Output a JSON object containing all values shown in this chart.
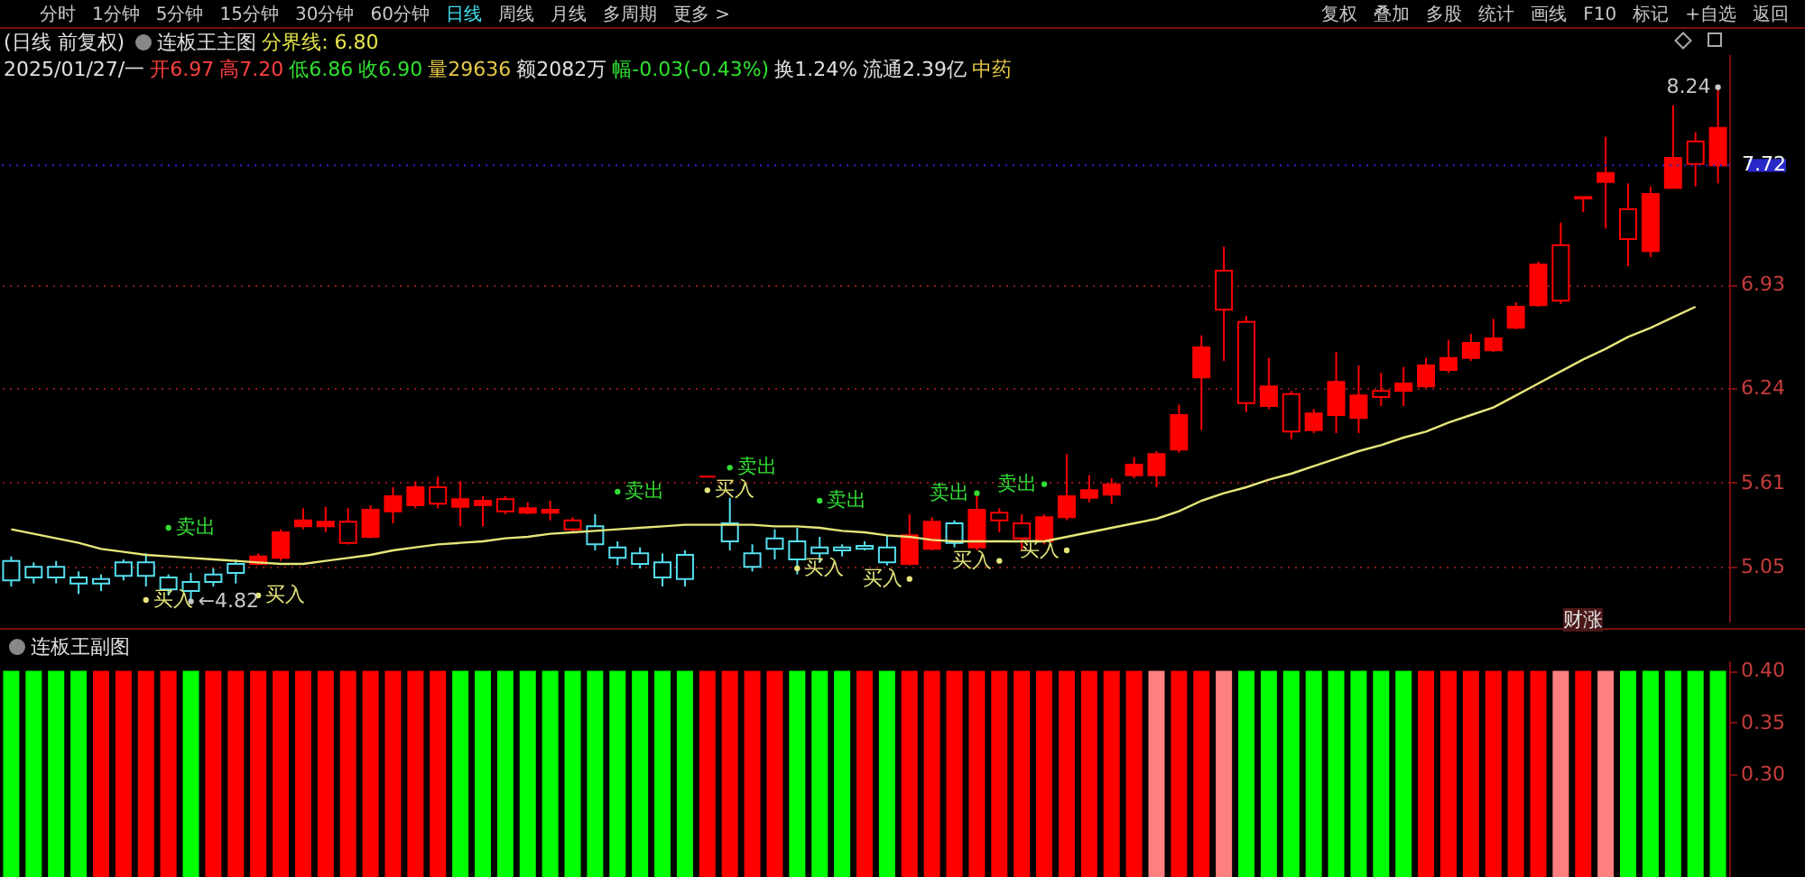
{
  "chart_data": [
    {
      "type": "candlestick",
      "title": "连板王主图",
      "subtitle": "分界线: 6.80",
      "categories": [
        null,
        null,
        null,
        null,
        null,
        null,
        null,
        null,
        null,
        null,
        null,
        null,
        null,
        null,
        null,
        null,
        null,
        null,
        null,
        null,
        null,
        null,
        null,
        null,
        null,
        null,
        null,
        null,
        null,
        null,
        null,
        null,
        null,
        null,
        null,
        null,
        null,
        null,
        null,
        null,
        null,
        null,
        null,
        null,
        null,
        null,
        null,
        null,
        null,
        null,
        null,
        null,
        null,
        null,
        null,
        null,
        null,
        null,
        null,
        null,
        null,
        null,
        null,
        null,
        null,
        null,
        null,
        null,
        null,
        null,
        null,
        null,
        null,
        null,
        null,
        null,
        null
      ],
      "ohlc": [
        [
          4.96,
          5.12,
          4.92,
          5.09
        ],
        [
          4.98,
          5.08,
          4.94,
          5.05
        ],
        [
          4.98,
          5.09,
          4.94,
          5.05
        ],
        [
          4.94,
          5.02,
          4.87,
          4.98
        ],
        [
          4.94,
          5.0,
          4.89,
          4.97
        ],
        [
          4.99,
          5.1,
          4.96,
          5.08
        ],
        [
          4.99,
          5.14,
          4.92,
          5.08
        ],
        [
          4.9,
          5.0,
          4.86,
          4.98
        ],
        [
          4.89,
          5.01,
          4.82,
          4.95
        ],
        [
          4.95,
          5.04,
          4.92,
          5.0
        ],
        [
          5.01,
          5.1,
          4.94,
          5.07
        ],
        [
          5.12,
          5.14,
          5.06,
          5.07
        ],
        [
          5.28,
          5.3,
          5.09,
          5.11
        ],
        [
          5.36,
          5.44,
          5.3,
          5.32
        ],
        [
          5.35,
          5.45,
          5.28,
          5.32
        ],
        [
          5.21,
          5.44,
          5.2,
          5.35
        ],
        [
          5.43,
          5.46,
          5.24,
          5.25
        ],
        [
          5.52,
          5.58,
          5.34,
          5.42
        ],
        [
          5.58,
          5.62,
          5.44,
          5.46
        ],
        [
          5.47,
          5.65,
          5.44,
          5.58
        ],
        [
          5.5,
          5.62,
          5.32,
          5.45
        ],
        [
          5.49,
          5.52,
          5.32,
          5.46
        ],
        [
          5.42,
          5.52,
          5.4,
          5.5
        ],
        [
          5.44,
          5.48,
          5.4,
          5.41
        ],
        [
          5.43,
          5.49,
          5.36,
          5.41
        ],
        [
          5.3,
          5.38,
          5.28,
          5.36
        ],
        [
          5.2,
          5.4,
          5.16,
          5.32
        ],
        [
          5.11,
          5.22,
          5.06,
          5.18
        ],
        [
          5.07,
          5.18,
          5.04,
          5.14
        ],
        [
          4.98,
          5.14,
          4.92,
          5.08
        ],
        [
          4.97,
          5.16,
          4.92,
          5.13
        ],
        [
          5.65,
          5.65,
          5.65,
          5.65
        ],
        [
          5.22,
          5.51,
          5.16,
          5.34
        ],
        [
          5.05,
          5.2,
          5.02,
          5.14
        ],
        [
          5.17,
          5.3,
          5.1,
          5.24
        ],
        [
          5.1,
          5.31,
          5.0,
          5.22
        ],
        [
          5.14,
          5.25,
          5.08,
          5.18
        ],
        [
          5.16,
          5.2,
          5.12,
          5.18
        ],
        [
          5.17,
          5.22,
          5.16,
          5.19
        ],
        [
          5.08,
          5.26,
          5.06,
          5.18
        ],
        [
          5.26,
          5.4,
          5.06,
          5.07
        ],
        [
          5.35,
          5.38,
          5.16,
          5.17
        ],
        [
          5.21,
          5.36,
          5.18,
          5.34
        ],
        [
          5.43,
          5.54,
          5.16,
          5.18
        ],
        [
          5.36,
          5.44,
          5.28,
          5.41
        ],
        [
          5.24,
          5.4,
          5.16,
          5.34
        ],
        [
          5.38,
          5.4,
          5.2,
          5.22
        ],
        [
          5.52,
          5.8,
          5.36,
          5.38
        ],
        [
          5.56,
          5.66,
          5.48,
          5.51
        ],
        [
          5.6,
          5.64,
          5.47,
          5.53
        ],
        [
          5.73,
          5.78,
          5.64,
          5.66
        ],
        [
          5.8,
          5.82,
          5.58,
          5.66
        ],
        [
          6.06,
          6.13,
          5.81,
          5.83
        ],
        [
          6.51,
          6.59,
          5.96,
          6.31
        ],
        [
          6.76,
          7.18,
          6.42,
          7.02
        ],
        [
          6.14,
          6.72,
          6.08,
          6.68
        ],
        [
          6.25,
          6.44,
          6.1,
          6.12
        ],
        [
          5.95,
          6.22,
          5.9,
          6.2
        ],
        [
          6.07,
          6.1,
          5.94,
          5.96
        ],
        [
          6.28,
          6.48,
          5.94,
          6.06
        ],
        [
          6.19,
          6.39,
          5.94,
          6.04
        ],
        [
          6.18,
          6.34,
          6.12,
          6.22
        ],
        [
          6.27,
          6.38,
          6.12,
          6.22
        ],
        [
          6.39,
          6.44,
          6.24,
          6.25
        ],
        [
          6.44,
          6.56,
          6.34,
          6.36
        ],
        [
          6.54,
          6.6,
          6.42,
          6.44
        ],
        [
          6.57,
          6.7,
          6.48,
          6.49
        ],
        [
          6.78,
          6.81,
          6.63,
          6.64
        ],
        [
          7.06,
          7.08,
          6.78,
          6.79
        ],
        [
          6.82,
          7.34,
          6.8,
          7.19
        ],
        [
          7.5,
          7.51,
          7.41,
          7.51
        ],
        [
          7.67,
          7.91,
          7.3,
          7.61
        ],
        [
          7.23,
          7.6,
          7.05,
          7.43
        ],
        [
          7.53,
          7.58,
          7.11,
          7.15
        ],
        [
          7.77,
          8.12,
          7.57,
          7.57
        ],
        [
          7.73,
          7.94,
          7.58,
          7.88
        ],
        [
          7.97,
          8.24,
          7.6,
          7.72
        ]
      ],
      "colors": [
        "#54e0f0",
        "#54e0f0",
        "#54e0f0",
        "#54e0f0",
        "#54e0f0",
        "#54e0f0",
        "#54e0f0",
        "#54e0f0",
        "#54e0f0",
        "#54e0f0",
        "#54e0f0",
        "#ff0000",
        "#ff0000",
        "#ff0000",
        "#ff0000",
        "#ff0000",
        "#ff0000",
        "#ff0000",
        "#ff0000",
        "#ff0000",
        "#ff0000",
        "#ff0000",
        "#ff0000",
        "#ff0000",
        "#ff0000",
        "#ff0000",
        "#54e0f0",
        "#54e0f0",
        "#54e0f0",
        "#54e0f0",
        "#54e0f0",
        "#ff0000",
        "#54e0f0",
        "#54e0f0",
        "#54e0f0",
        "#54e0f0",
        "#54e0f0",
        "#54e0f0",
        "#54e0f0",
        "#54e0f0",
        "#ff0000",
        "#ff0000",
        "#54e0f0",
        "#ff0000",
        "#ff0000",
        "#ff0000",
        "#ff0000",
        "#ff0000",
        "#ff0000",
        "#ff0000",
        "#ff0000",
        "#ff0000",
        "#ff0000",
        "#ff0000",
        "#ff0000",
        "#ff0000",
        "#ff0000",
        "#ff0000",
        "#ff0000",
        "#ff0000",
        "#ff0000",
        "#ff0000",
        "#ff0000",
        "#ff0000",
        "#ff0000",
        "#ff0000",
        "#ff0000",
        "#ff0000",
        "#ff0000",
        "#ff0000",
        "#ff0000",
        "#ff0000",
        "#ff0000",
        "#ff0000",
        "#ff0000",
        "#ff0000",
        "#ff0000"
      ],
      "series": [
        {
          "type": "line",
          "color": "#e6e67a",
          "values": [
            5.3,
            5.27,
            5.24,
            5.21,
            5.17,
            5.15,
            5.13,
            5.12,
            5.11,
            5.1,
            5.09,
            5.08,
            5.07,
            5.07,
            5.09,
            5.11,
            5.13,
            5.16,
            5.18,
            5.2,
            5.21,
            5.22,
            5.24,
            5.25,
            5.27,
            5.28,
            5.29,
            5.3,
            5.31,
            5.32,
            5.33,
            5.33,
            5.33,
            5.33,
            5.32,
            5.32,
            5.31,
            5.29,
            5.28,
            5.26,
            5.25,
            5.23,
            5.22,
            5.22,
            5.22,
            5.22,
            5.22,
            5.25,
            5.28,
            5.31,
            5.34,
            5.37,
            5.42,
            5.49,
            5.54,
            5.58,
            5.63,
            5.67,
            5.72,
            5.77,
            5.82,
            5.86,
            5.91,
            5.95,
            6.01,
            6.06,
            6.11,
            6.19,
            6.27,
            6.35,
            6.43,
            6.5,
            6.58,
            6.64,
            6.71,
            6.78,
            null
          ]
        },
        {
          "type": "scatter",
          "marker": "circle",
          "color": "#33dd33",
          "values": [
            null,
            null,
            null,
            null,
            null,
            null,
            null,
            5.31,
            null,
            null,
            null,
            null,
            null,
            null,
            null,
            null,
            null,
            null,
            null,
            null,
            null,
            null,
            null,
            null,
            null,
            null,
            null,
            5.55,
            null,
            null,
            null,
            null,
            5.71,
            null,
            null,
            null,
            5.49,
            null,
            null,
            null,
            null,
            null,
            null,
            5.54,
            null,
            null,
            5.6,
            null,
            null,
            null,
            null,
            null,
            null,
            null,
            null,
            null,
            null,
            null,
            null,
            null,
            null,
            null,
            null,
            null,
            null,
            null,
            null,
            null,
            null,
            null,
            null,
            null,
            null,
            null,
            null,
            null,
            null
          ],
          "value_labels": [
            null,
            null,
            null,
            null,
            null,
            null,
            null,
            "卖出",
            null,
            null,
            null,
            null,
            null,
            null,
            null,
            null,
            null,
            null,
            null,
            null,
            null,
            null,
            null,
            null,
            null,
            null,
            null,
            "卖出",
            null,
            null,
            null,
            null,
            "卖出",
            null,
            null,
            null,
            "卖出",
            null,
            null,
            null,
            null,
            null,
            null,
            "卖出",
            null,
            null,
            "卖出",
            null,
            null,
            null,
            null,
            null,
            null,
            null,
            null,
            null,
            null,
            null,
            null,
            null,
            null,
            null,
            null,
            null,
            null,
            null,
            null,
            null,
            null,
            null,
            null,
            null,
            null,
            null,
            null,
            null,
            null
          ]
        },
        {
          "type": "scatter",
          "marker": "circle",
          "color": "#e6e67a",
          "values": [
            null,
            null,
            null,
            null,
            null,
            null,
            4.83,
            null,
            null,
            null,
            null,
            4.86,
            null,
            null,
            null,
            null,
            null,
            null,
            null,
            null,
            null,
            null,
            null,
            null,
            null,
            null,
            null,
            null,
            null,
            null,
            null,
            5.56,
            null,
            null,
            null,
            5.04,
            null,
            null,
            null,
            null,
            4.97,
            null,
            null,
            null,
            5.09,
            null,
            null,
            5.16,
            null,
            null,
            null,
            null,
            null,
            null,
            null,
            null,
            null,
            null,
            null,
            null,
            null,
            null,
            null,
            null,
            null,
            null,
            null,
            null,
            null,
            null,
            null,
            null,
            null,
            null,
            null,
            null,
            null
          ],
          "value_labels": [
            null,
            null,
            null,
            null,
            null,
            null,
            "买入",
            null,
            null,
            null,
            null,
            "买入",
            null,
            null,
            null,
            null,
            null,
            null,
            null,
            null,
            null,
            null,
            null,
            null,
            null,
            null,
            null,
            null,
            null,
            null,
            null,
            "买入",
            null,
            null,
            null,
            "买入",
            null,
            null,
            null,
            null,
            "买入",
            null,
            null,
            null,
            "买入",
            null,
            null,
            "买入",
            null,
            null,
            null,
            null,
            null,
            null,
            null,
            null,
            null,
            null,
            null,
            null,
            null,
            null,
            null,
            null,
            null,
            null,
            null,
            null,
            null,
            null,
            null,
            null,
            null,
            null,
            null,
            null,
            null
          ]
        },
        {
          "type": "scatter",
          "marker": "circle",
          "color": "#c8c8c8",
          "values": [
            null,
            null,
            null,
            null,
            null,
            null,
            null,
            null,
            4.82,
            null,
            null,
            null,
            null,
            null,
            null,
            null,
            null,
            null,
            null,
            null,
            null,
            null,
            null,
            null,
            null,
            null,
            null,
            null,
            null,
            null,
            null,
            null,
            null,
            null,
            null,
            null,
            null,
            null,
            null,
            null,
            null,
            null,
            null,
            null,
            null,
            null,
            null,
            null,
            null,
            null,
            null,
            null,
            null,
            null,
            null,
            null,
            null,
            null,
            null,
            null,
            null,
            null,
            null,
            null,
            null,
            null,
            null,
            null,
            null,
            null,
            null,
            null,
            null,
            null,
            null,
            null,
            8.24
          ],
          "value_labels": [
            null,
            null,
            null,
            null,
            null,
            null,
            null,
            null,
            "←4.82",
            null,
            null,
            null,
            null,
            null,
            null,
            null,
            null,
            null,
            null,
            null,
            null,
            null,
            null,
            null,
            null,
            null,
            null,
            null,
            null,
            null,
            null,
            null,
            null,
            null,
            null,
            null,
            null,
            null,
            null,
            null,
            null,
            null,
            null,
            null,
            null,
            null,
            null,
            null,
            null,
            null,
            null,
            null,
            null,
            null,
            null,
            null,
            null,
            null,
            null,
            null,
            null,
            null,
            null,
            null,
            null,
            null,
            null,
            null,
            null,
            null,
            null,
            null,
            null,
            null,
            null,
            null,
            "8.24"
          ]
        }
      ],
      "ylim": [
        4.68,
        8.46
      ],
      "yticks": [
        5.05,
        5.61,
        6.24,
        6.93
      ],
      "grid": "y",
      "tick_labels": "y",
      "ref_lines": [
        {
          "axis": "y",
          "value": 7.72,
          "label": "7.72",
          "color": "#2828c8"
        }
      ],
      "annotations": [
        "分时",
        "1分钟",
        "5分钟",
        "15分钟",
        "30分钟",
        "60分钟",
        "日线",
        "周线",
        "月线",
        "多周期",
        "更多 >",
        "复权",
        "叠加",
        "多股",
        "统计",
        "画线",
        "F10",
        "标记",
        "+自选",
        "返回",
        "(日线 前复权)",
        "2025/01/27/一",
        "开6.97",
        "高7.20",
        "低6.86",
        "收6.90",
        "量29636",
        "额2082万",
        "幅-0.03(-0.43%)",
        "换1.24%",
        "流通2.39亿",
        "中药",
        "财涨"
      ]
    },
    {
      "type": "bar",
      "title": "连板王副图",
      "categories": [
        null,
        null,
        null,
        null,
        null,
        null,
        null,
        null,
        null,
        null,
        null,
        null,
        null,
        null,
        null,
        null,
        null,
        null,
        null,
        null,
        null,
        null,
        null,
        null,
        null,
        null,
        null,
        null,
        null,
        null,
        null,
        null,
        null,
        null,
        null,
        null,
        null,
        null,
        null,
        null,
        null,
        null,
        null,
        null,
        null,
        null,
        null,
        null,
        null,
        null,
        null,
        null,
        null,
        null,
        null,
        null,
        null,
        null,
        null,
        null,
        null,
        null,
        null,
        null,
        null,
        null,
        null,
        null,
        null,
        null,
        null,
        null,
        null,
        null,
        null,
        null,
        null
      ],
      "values": [
        0.4,
        0.4,
        0.4,
        0.4,
        0.4,
        0.4,
        0.4,
        0.4,
        0.4,
        0.4,
        0.4,
        0.4,
        0.4,
        0.4,
        0.4,
        0.4,
        0.4,
        0.4,
        0.4,
        0.4,
        0.4,
        0.4,
        0.4,
        0.4,
        0.4,
        0.4,
        0.4,
        0.4,
        0.4,
        0.4,
        0.4,
        0.4,
        0.4,
        0.4,
        0.4,
        0.4,
        0.4,
        0.4,
        0.4,
        0.4,
        0.4,
        0.4,
        0.4,
        0.4,
        0.4,
        0.4,
        0.4,
        0.4,
        0.4,
        0.4,
        0.4,
        0.4,
        0.4,
        0.4,
        0.4,
        0.4,
        0.4,
        0.4,
        0.4,
        0.4,
        0.4,
        0.4,
        0.4,
        0.4,
        0.4,
        0.4,
        0.4,
        0.4,
        0.4,
        0.4,
        0.4,
        0.4,
        0.4,
        0.4,
        0.4,
        0.4,
        0.4
      ],
      "colors": [
        "#00ff00",
        "#00ff00",
        "#00ff00",
        "#00ff00",
        "#ff0000",
        "#ff0000",
        "#ff0000",
        "#ff0000",
        "#00ff00",
        "#ff0000",
        "#ff0000",
        "#ff0000",
        "#ff0000",
        "#ff0000",
        "#ff0000",
        "#ff0000",
        "#ff0000",
        "#ff0000",
        "#ff0000",
        "#ff0000",
        "#00ff00",
        "#00ff00",
        "#00ff00",
        "#00ff00",
        "#00ff00",
        "#00ff00",
        "#00ff00",
        "#00ff00",
        "#00ff00",
        "#00ff00",
        "#00ff00",
        "#ff0000",
        "#ff0000",
        "#ff0000",
        "#ff0000",
        "#00ff00",
        "#00ff00",
        "#00ff00",
        "#ff0000",
        "#00ff00",
        "#ff0000",
        "#ff0000",
        "#ff0000",
        "#ff0000",
        "#ff0000",
        "#ff0000",
        "#ff0000",
        "#ff0000",
        "#ff0000",
        "#ff0000",
        "#ff0000",
        "#ff8080",
        "#ff0000",
        "#ff0000",
        "#ff8080",
        "#00ff00",
        "#00ff00",
        "#00ff00",
        "#00ff00",
        "#00ff00",
        "#00ff00",
        "#00ff00",
        "#00ff00",
        "#ff0000",
        "#ff0000",
        "#ff0000",
        "#ff0000",
        "#ff0000",
        "#ff0000",
        "#ff8080",
        "#ff0000",
        "#ff8080",
        "#00ff00",
        "#00ff00",
        "#00ff00",
        "#00ff00",
        "#00ff00"
      ],
      "ylim": [
        0.2,
        0.41
      ],
      "yticks": [
        {
          "value": 0.3,
          "label": "0.30"
        },
        0.35,
        {
          "value": 0.4,
          "label": "0.40"
        }
      ],
      "tick_labels": "y"
    }
  ]
}
